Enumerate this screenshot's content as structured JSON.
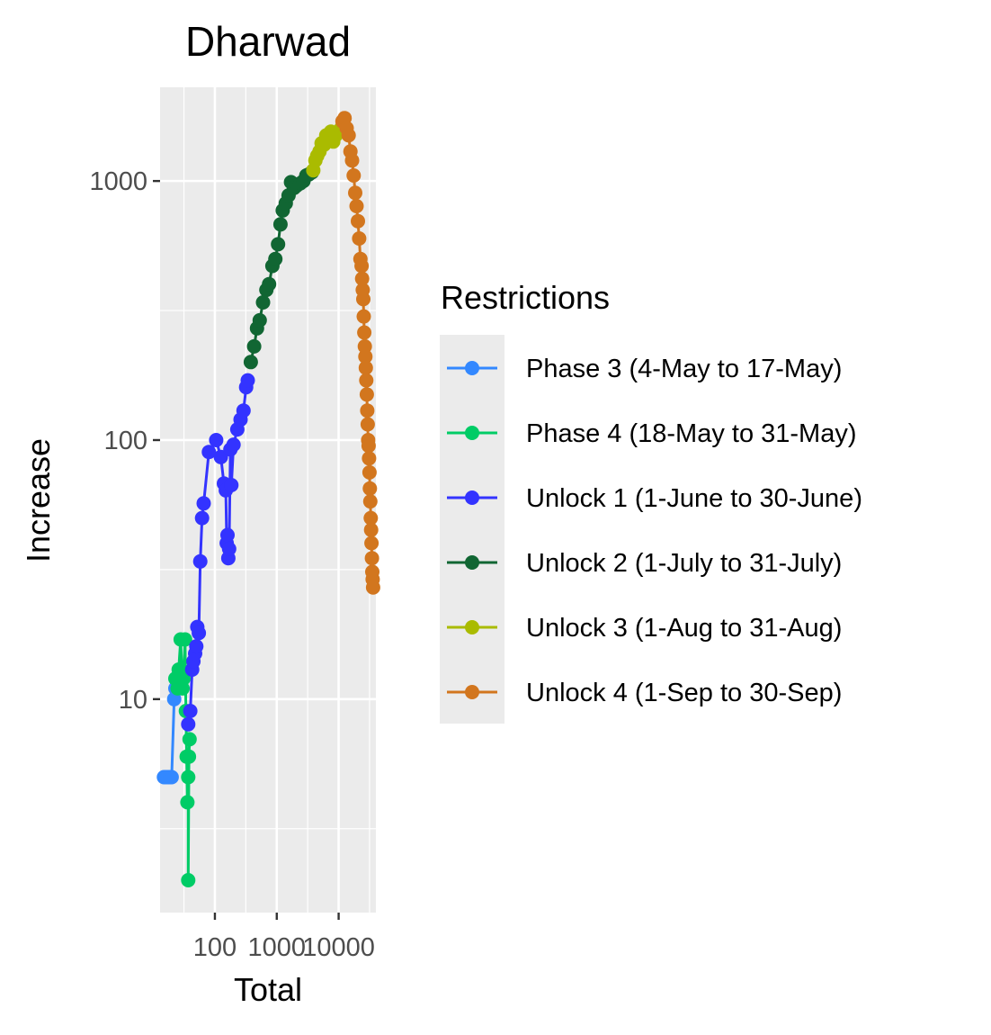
{
  "chart_data": {
    "type": "line",
    "title": "Dharwad",
    "xlabel": "Total",
    "ylabel": "Increase",
    "x_scale": "log10",
    "y_scale": "log10",
    "xlim": [
      13,
      40000
    ],
    "ylim": [
      1.5,
      2300
    ],
    "x_ticks": [
      {
        "value": 100,
        "label": "100"
      },
      {
        "value": 1000,
        "label": "1000"
      },
      {
        "value": 10000,
        "label": "10000"
      }
    ],
    "y_ticks": [
      {
        "value": 10,
        "label": "10"
      },
      {
        "value": 100,
        "label": "100"
      },
      {
        "value": 1000,
        "label": "1000"
      }
    ],
    "grid": true,
    "legend": {
      "title": "Restrictions",
      "position": "right"
    },
    "series": [
      {
        "name": "Phase 3 (4-May to 17-May)",
        "color": "#3388FF",
        "points": [
          [
            15,
            5
          ],
          [
            16,
            5
          ],
          [
            17,
            5
          ],
          [
            18,
            5
          ],
          [
            19,
            5
          ],
          [
            20,
            5
          ],
          [
            22,
            10
          ],
          [
            23,
            11
          ]
        ]
      },
      {
        "name": "Phase 4 (18-May to 31-May)",
        "color": "#00CC66",
        "points": [
          [
            23,
            12
          ],
          [
            25,
            11
          ],
          [
            26,
            13
          ],
          [
            28,
            17
          ],
          [
            30,
            11
          ],
          [
            31,
            12
          ],
          [
            33,
            17
          ],
          [
            34,
            9
          ],
          [
            35,
            6
          ],
          [
            36,
            4
          ],
          [
            37,
            5
          ],
          [
            37,
            2
          ],
          [
            38,
            6
          ],
          [
            39,
            7
          ]
        ]
      },
      {
        "name": "Unlock 1 (1-June to 30-June)",
        "color": "#3333FF",
        "points": [
          [
            37,
            8
          ],
          [
            40,
            9
          ],
          [
            43,
            13
          ],
          [
            45,
            14
          ],
          [
            48,
            15
          ],
          [
            50,
            16
          ],
          [
            52,
            19
          ],
          [
            55,
            18
          ],
          [
            58,
            34
          ],
          [
            62,
            50
          ],
          [
            66,
            57
          ],
          [
            80,
            90
          ],
          [
            105,
            100
          ],
          [
            125,
            86
          ],
          [
            140,
            68
          ],
          [
            150,
            64
          ],
          [
            155,
            40
          ],
          [
            160,
            43
          ],
          [
            165,
            35
          ],
          [
            170,
            38
          ],
          [
            178,
            92
          ],
          [
            185,
            67
          ],
          [
            200,
            96
          ],
          [
            230,
            110
          ],
          [
            260,
            120
          ],
          [
            290,
            130
          ],
          [
            320,
            160
          ],
          [
            340,
            170
          ]
        ]
      },
      {
        "name": "Unlock 2 (1-July to 31-July)",
        "color": "#116633",
        "points": [
          [
            380,
            200
          ],
          [
            430,
            230
          ],
          [
            480,
            270
          ],
          [
            530,
            290
          ],
          [
            600,
            340
          ],
          [
            680,
            380
          ],
          [
            750,
            400
          ],
          [
            850,
            470
          ],
          [
            950,
            500
          ],
          [
            1050,
            570
          ],
          [
            1150,
            680
          ],
          [
            1250,
            770
          ],
          [
            1400,
            820
          ],
          [
            1550,
            880
          ],
          [
            1700,
            990
          ],
          [
            1900,
            940
          ],
          [
            2100,
            960
          ],
          [
            2400,
            980
          ],
          [
            2700,
            1000
          ],
          [
            3000,
            1050
          ],
          [
            3300,
            1060
          ],
          [
            3700,
            1080
          ]
        ]
      },
      {
        "name": "Unlock 3 (1-Aug to 31-Aug)",
        "color": "#AABB00",
        "points": [
          [
            3900,
            1100
          ],
          [
            4200,
            1200
          ],
          [
            4500,
            1250
          ],
          [
            4900,
            1300
          ],
          [
            5300,
            1400
          ],
          [
            5800,
            1380
          ],
          [
            6300,
            1500
          ],
          [
            6900,
            1450
          ],
          [
            7500,
            1550
          ],
          [
            8200,
            1420
          ],
          [
            9000,
            1500
          ],
          [
            10000,
            1550
          ],
          [
            11000,
            1600
          ]
        ]
      },
      {
        "name": "Unlock 4 (1-Sep to 30-Sep)",
        "color": "#D2761E",
        "points": [
          [
            11500,
            1700
          ],
          [
            12500,
            1750
          ],
          [
            13500,
            1600
          ],
          [
            14500,
            1500
          ],
          [
            15500,
            1300
          ],
          [
            16500,
            1200
          ],
          [
            17500,
            1050
          ],
          [
            18500,
            900
          ],
          [
            19500,
            800
          ],
          [
            20500,
            700
          ],
          [
            21500,
            600
          ],
          [
            22500,
            500
          ],
          [
            23500,
            470
          ],
          [
            24000,
            420
          ],
          [
            24500,
            380
          ],
          [
            25000,
            350
          ],
          [
            25500,
            300
          ],
          [
            26000,
            260
          ],
          [
            26500,
            230
          ],
          [
            27000,
            210
          ],
          [
            27500,
            190
          ],
          [
            28000,
            170
          ],
          [
            28500,
            150
          ],
          [
            29000,
            130
          ],
          [
            29500,
            115
          ],
          [
            30000,
            100
          ],
          [
            30500,
            95
          ],
          [
            31000,
            85
          ],
          [
            31500,
            75
          ],
          [
            32000,
            65
          ],
          [
            32500,
            58
          ],
          [
            33000,
            50
          ],
          [
            33500,
            45
          ],
          [
            34000,
            40
          ],
          [
            34500,
            35
          ],
          [
            35000,
            31
          ],
          [
            35500,
            29
          ],
          [
            36000,
            27
          ]
        ]
      }
    ]
  }
}
